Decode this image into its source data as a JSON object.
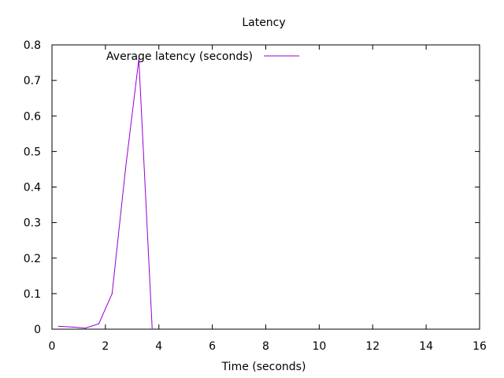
{
  "chart_data": {
    "type": "line",
    "title": "Latency",
    "xlabel": "Time (seconds)",
    "ylabel": "",
    "xlim": [
      0,
      16
    ],
    "ylim": [
      0,
      0.8
    ],
    "xticks": [
      0,
      2,
      4,
      6,
      8,
      10,
      12,
      14,
      16
    ],
    "yticks": [
      0,
      0.1,
      0.2,
      0.3,
      0.4,
      0.5,
      0.6,
      0.7,
      0.8
    ],
    "xtick_labels": [
      "0",
      "2",
      "4",
      "6",
      "8",
      "10",
      "12",
      "14",
      "16"
    ],
    "ytick_labels": [
      "0",
      "0.1",
      "0.2",
      "0.3",
      "0.4",
      "0.5",
      "0.6",
      "0.7",
      "0.8"
    ],
    "grid": false,
    "legend_position": "top-center",
    "series": [
      {
        "name": "Average latency (seconds)",
        "color": "#9400d3",
        "x": [
          0.25,
          0.75,
          1.25,
          1.75,
          2.25,
          2.75,
          3.25,
          3.75
        ],
        "y": [
          0.008,
          0.006,
          0.003,
          0.015,
          0.1,
          0.45,
          0.76,
          0.0
        ]
      }
    ]
  }
}
